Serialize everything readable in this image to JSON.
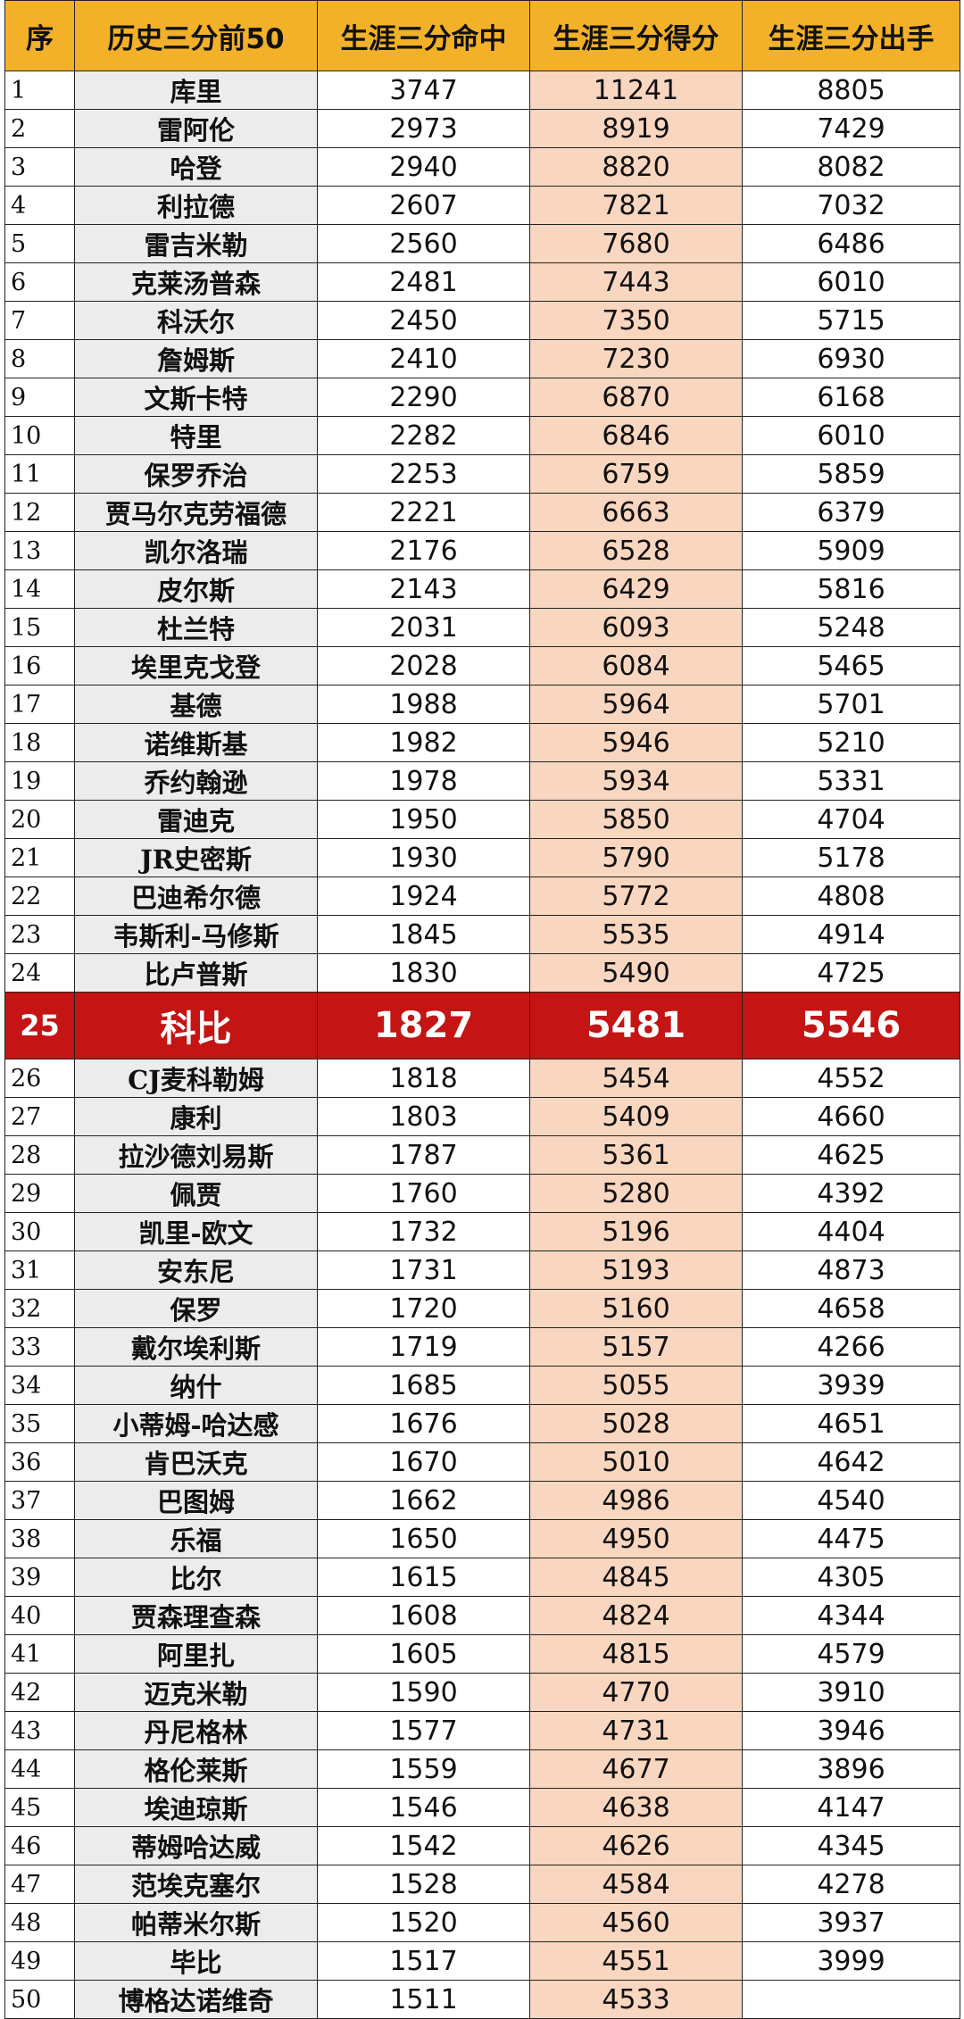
{
  "headers": [
    "序",
    "历史三分前50",
    "生涯三分命中",
    "生涯三分得分",
    "生涯三分出手"
  ],
  "highlight_rank": 25,
  "colors": {
    "header": "#f3b12a",
    "highlight": "#c41414",
    "points_column": "#f9d6bf",
    "name_column": "#ececec"
  },
  "rows": [
    {
      "rank": "1",
      "name": "库里",
      "made": "3747",
      "points": "11241",
      "attempts": "8805"
    },
    {
      "rank": "2",
      "name": "雷阿伦",
      "made": "2973",
      "points": "8919",
      "attempts": "7429"
    },
    {
      "rank": "3",
      "name": "哈登",
      "made": "2940",
      "points": "8820",
      "attempts": "8082"
    },
    {
      "rank": "4",
      "name": "利拉德",
      "made": "2607",
      "points": "7821",
      "attempts": "7032"
    },
    {
      "rank": "5",
      "name": "雷吉米勒",
      "made": "2560",
      "points": "7680",
      "attempts": "6486"
    },
    {
      "rank": "6",
      "name": "克莱汤普森",
      "made": "2481",
      "points": "7443",
      "attempts": "6010"
    },
    {
      "rank": "7",
      "name": "科沃尔",
      "made": "2450",
      "points": "7350",
      "attempts": "5715"
    },
    {
      "rank": "8",
      "name": "詹姆斯",
      "made": "2410",
      "points": "7230",
      "attempts": "6930"
    },
    {
      "rank": "9",
      "name": "文斯卡特",
      "made": "2290",
      "points": "6870",
      "attempts": "6168"
    },
    {
      "rank": "10",
      "name": "特里",
      "made": "2282",
      "points": "6846",
      "attempts": "6010"
    },
    {
      "rank": "11",
      "name": "保罗乔治",
      "made": "2253",
      "points": "6759",
      "attempts": "5859"
    },
    {
      "rank": "12",
      "name": "贾马尔克劳福德",
      "made": "2221",
      "points": "6663",
      "attempts": "6379"
    },
    {
      "rank": "13",
      "name": "凯尔洛瑞",
      "made": "2176",
      "points": "6528",
      "attempts": "5909"
    },
    {
      "rank": "14",
      "name": "皮尔斯",
      "made": "2143",
      "points": "6429",
      "attempts": "5816"
    },
    {
      "rank": "15",
      "name": "杜兰特",
      "made": "2031",
      "points": "6093",
      "attempts": "5248"
    },
    {
      "rank": "16",
      "name": "埃里克戈登",
      "made": "2028",
      "points": "6084",
      "attempts": "5465"
    },
    {
      "rank": "17",
      "name": "基德",
      "made": "1988",
      "points": "5964",
      "attempts": "5701"
    },
    {
      "rank": "18",
      "name": "诺维斯基",
      "made": "1982",
      "points": "5946",
      "attempts": "5210"
    },
    {
      "rank": "19",
      "name": "乔约翰逊",
      "made": "1978",
      "points": "5934",
      "attempts": "5331"
    },
    {
      "rank": "20",
      "name": "雷迪克",
      "made": "1950",
      "points": "5850",
      "attempts": "4704"
    },
    {
      "rank": "21",
      "name": "JR史密斯",
      "made": "1930",
      "points": "5790",
      "attempts": "5178"
    },
    {
      "rank": "22",
      "name": "巴迪希尔德",
      "made": "1924",
      "points": "5772",
      "attempts": "4808"
    },
    {
      "rank": "23",
      "name": "韦斯利-马修斯",
      "made": "1845",
      "points": "5535",
      "attempts": "4914"
    },
    {
      "rank": "24",
      "name": "比卢普斯",
      "made": "1830",
      "points": "5490",
      "attempts": "4725"
    },
    {
      "rank": "25",
      "name": "科比",
      "made": "1827",
      "points": "5481",
      "attempts": "5546"
    },
    {
      "rank": "26",
      "name": "CJ麦科勒姆",
      "made": "1818",
      "points": "5454",
      "attempts": "4552"
    },
    {
      "rank": "27",
      "name": "康利",
      "made": "1803",
      "points": "5409",
      "attempts": "4660"
    },
    {
      "rank": "28",
      "name": "拉沙德刘易斯",
      "made": "1787",
      "points": "5361",
      "attempts": "4625"
    },
    {
      "rank": "29",
      "name": "佩贾",
      "made": "1760",
      "points": "5280",
      "attempts": "4392"
    },
    {
      "rank": "30",
      "name": "凯里-欧文",
      "made": "1732",
      "points": "5196",
      "attempts": "4404"
    },
    {
      "rank": "31",
      "name": "安东尼",
      "made": "1731",
      "points": "5193",
      "attempts": "4873"
    },
    {
      "rank": "32",
      "name": "保罗",
      "made": "1720",
      "points": "5160",
      "attempts": "4658"
    },
    {
      "rank": "33",
      "name": "戴尔埃利斯",
      "made": "1719",
      "points": "5157",
      "attempts": "4266"
    },
    {
      "rank": "34",
      "name": "纳什",
      "made": "1685",
      "points": "5055",
      "attempts": "3939"
    },
    {
      "rank": "35",
      "name": "小蒂姆-哈达感",
      "made": "1676",
      "points": "5028",
      "attempts": "4651"
    },
    {
      "rank": "36",
      "name": "肯巴沃克",
      "made": "1670",
      "points": "5010",
      "attempts": "4642"
    },
    {
      "rank": "37",
      "name": "巴图姆",
      "made": "1662",
      "points": "4986",
      "attempts": "4540"
    },
    {
      "rank": "38",
      "name": "乐福",
      "made": "1650",
      "points": "4950",
      "attempts": "4475"
    },
    {
      "rank": "39",
      "name": "比尔",
      "made": "1615",
      "points": "4845",
      "attempts": "4305"
    },
    {
      "rank": "40",
      "name": "贾森理查森",
      "made": "1608",
      "points": "4824",
      "attempts": "4344"
    },
    {
      "rank": "41",
      "name": "阿里扎",
      "made": "1605",
      "points": "4815",
      "attempts": "4579"
    },
    {
      "rank": "42",
      "name": "迈克米勒",
      "made": "1590",
      "points": "4770",
      "attempts": "3910"
    },
    {
      "rank": "43",
      "name": "丹尼格林",
      "made": "1577",
      "points": "4731",
      "attempts": "3946"
    },
    {
      "rank": "44",
      "name": "格伦莱斯",
      "made": "1559",
      "points": "4677",
      "attempts": "3896"
    },
    {
      "rank": "45",
      "name": "埃迪琼斯",
      "made": "1546",
      "points": "4638",
      "attempts": "4147"
    },
    {
      "rank": "46",
      "name": "蒂姆哈达威",
      "made": "1542",
      "points": "4626",
      "attempts": "4345"
    },
    {
      "rank": "47",
      "name": "范埃克塞尔",
      "made": "1528",
      "points": "4584",
      "attempts": "4278"
    },
    {
      "rank": "48",
      "name": "帕蒂米尔斯",
      "made": "1520",
      "points": "4560",
      "attempts": "3937"
    },
    {
      "rank": "49",
      "name": "毕比",
      "made": "1517",
      "points": "4551",
      "attempts": "3999"
    },
    {
      "rank": "50",
      "name": "博格达诺维奇",
      "made": "1511",
      "points": "4533",
      "attempts": ""
    }
  ]
}
